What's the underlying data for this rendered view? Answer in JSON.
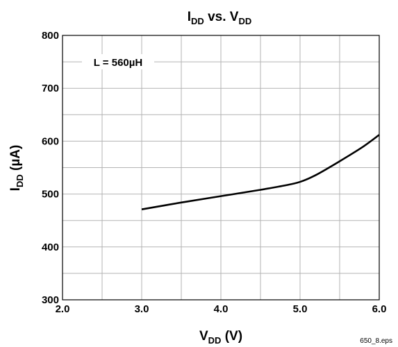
{
  "chart_data": {
    "type": "line",
    "title": {
      "main": "I",
      "sub": "DD",
      "mid": " vs. V",
      "sub2": "DD"
    },
    "xlabel": {
      "main": "V",
      "sub": "DD",
      "rest": " (V)"
    },
    "ylabel": {
      "main": "I",
      "sub": "DD",
      "rest": " (µA)"
    },
    "xlim": [
      2.0,
      6.0
    ],
    "ylim": [
      300,
      800
    ],
    "x_ticks": [
      2.0,
      3.0,
      4.0,
      5.0,
      6.0
    ],
    "x_tick_labels": [
      "2.0",
      "3.0",
      "4.0",
      "5.0",
      "6.0"
    ],
    "y_ticks": [
      300,
      400,
      500,
      600,
      700,
      800
    ],
    "y_tick_labels": [
      "300",
      "400",
      "500",
      "600",
      "700",
      "800"
    ],
    "x_grid_step": 0.5,
    "y_grid_step": 50,
    "grid": true,
    "annotation": "L = 560µH",
    "series": [
      {
        "color": "#000000",
        "x": [
          3.0,
          3.5,
          4.0,
          4.5,
          4.8,
          5.0,
          5.2,
          5.5,
          5.8,
          6.0
        ],
        "y": [
          471,
          484,
          496,
          508,
          516,
          523,
          536,
          562,
          590,
          612
        ]
      }
    ]
  },
  "footnote": "650_8.eps"
}
